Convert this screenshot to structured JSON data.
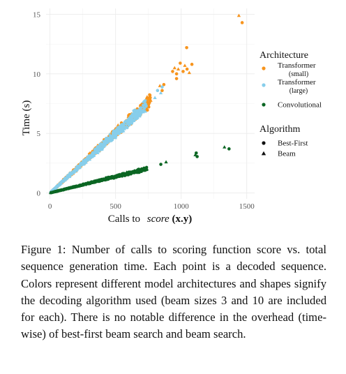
{
  "chart_data": {
    "type": "scatter",
    "xlabel_prefix": "Calls to",
    "xlabel_math": "score",
    "xlabel_args": "(x.y)",
    "ylabel": "Time (s)",
    "xlim": [
      -30,
      1560
    ],
    "ylim": [
      -0.5,
      15.5
    ],
    "x_ticks": [
      0,
      500,
      1000,
      1500
    ],
    "x_tick_labels": [
      "0",
      "500",
      "1000",
      "1500"
    ],
    "y_ticks": [
      0,
      5,
      10,
      15
    ],
    "y_tick_labels": [
      "0",
      "5",
      "10",
      "15"
    ],
    "grid": true,
    "legend_placement": "right",
    "legend": {
      "color_title": "Architecture",
      "color_items": [
        {
          "label_lines": [
            "Transformer",
            "(small)"
          ],
          "color": "#f7941d"
        },
        {
          "label_lines": [
            "Transformer",
            "(large)"
          ],
          "color": "#87ceeb"
        },
        {
          "label_lines": [
            "Convolutional"
          ],
          "color": "#0b6623"
        }
      ],
      "shape_title": "Algorithm",
      "shape_items": [
        {
          "label": "Best-First",
          "shape": "circle"
        },
        {
          "label": "Beam",
          "shape": "triangle"
        }
      ]
    },
    "series": [
      {
        "architecture": "Transformer (small)",
        "color": "#f7941d",
        "slope": 0.0102,
        "dense_x_range": [
          10,
          770
        ],
        "outliers": [
          {
            "x": 1042,
            "y": 12.2,
            "shape": "circle"
          },
          {
            "x": 1440,
            "y": 14.9,
            "shape": "triangle"
          },
          {
            "x": 1465,
            "y": 14.3,
            "shape": "circle"
          },
          {
            "x": 935,
            "y": 10.2,
            "shape": "circle"
          },
          {
            "x": 950,
            "y": 10.5,
            "shape": "triangle"
          },
          {
            "x": 965,
            "y": 10.0,
            "shape": "circle"
          },
          {
            "x": 978,
            "y": 10.4,
            "shape": "triangle"
          },
          {
            "x": 993,
            "y": 10.9,
            "shape": "circle"
          },
          {
            "x": 1015,
            "y": 10.2,
            "shape": "circle"
          },
          {
            "x": 1028,
            "y": 10.7,
            "shape": "triangle"
          },
          {
            "x": 1045,
            "y": 10.4,
            "shape": "circle"
          },
          {
            "x": 1062,
            "y": 10.1,
            "shape": "triangle"
          },
          {
            "x": 1082,
            "y": 10.8,
            "shape": "circle"
          },
          {
            "x": 838,
            "y": 9.0,
            "shape": "triangle"
          },
          {
            "x": 855,
            "y": 8.6,
            "shape": "circle"
          },
          {
            "x": 868,
            "y": 9.1,
            "shape": "circle"
          },
          {
            "x": 965,
            "y": 9.6,
            "shape": "circle"
          }
        ]
      },
      {
        "architecture": "Transformer (large)",
        "color": "#87ceeb",
        "slope": 0.01,
        "dense_x_range": [
          5,
          740
        ],
        "outliers": [
          {
            "x": 800,
            "y": 8.0,
            "shape": "triangle"
          },
          {
            "x": 820,
            "y": 8.6,
            "shape": "circle"
          },
          {
            "x": 845,
            "y": 8.4,
            "shape": "triangle"
          },
          {
            "x": 855,
            "y": 8.9,
            "shape": "circle"
          }
        ]
      },
      {
        "architecture": "Convolutional",
        "color": "#0b6623",
        "slope": 0.00275,
        "dense_x_range": [
          5,
          740
        ],
        "outliers": [
          {
            "x": 845,
            "y": 2.4,
            "shape": "circle"
          },
          {
            "x": 885,
            "y": 2.6,
            "shape": "triangle"
          },
          {
            "x": 1108,
            "y": 3.2,
            "shape": "triangle"
          },
          {
            "x": 1115,
            "y": 3.35,
            "shape": "circle"
          },
          {
            "x": 1122,
            "y": 3.05,
            "shape": "circle"
          },
          {
            "x": 1330,
            "y": 3.85,
            "shape": "triangle"
          },
          {
            "x": 1365,
            "y": 3.7,
            "shape": "circle"
          }
        ]
      }
    ]
  },
  "caption": {
    "label": "Figure 1:",
    "text_before": " Number of calls to scoring function ",
    "score_word": "score",
    "text_after": " vs. total sequence generation time. Each point is a decoded sequence. Colors represent different model architectures and shapes signify the decoding algorithm used (beam sizes 3 and 10 are included for each). There is no notable difference in the overhead (time-wise) of best-first beam search and beam search."
  }
}
